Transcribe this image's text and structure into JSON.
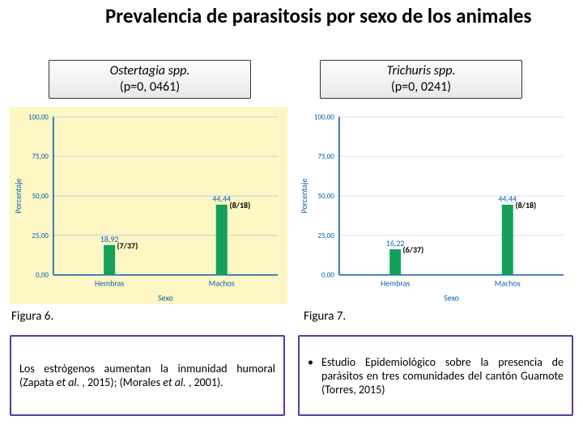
{
  "title": "Prevalencia de parasitosis por sexo de los animales",
  "labels": {
    "left": {
      "species": "Ostertagia spp.",
      "pval": "(p=0, 0461)"
    },
    "right": {
      "species": "Trichuris spp.",
      "pval": "(p=0, 0241)"
    }
  },
  "chart_left": {
    "type": "bar",
    "background": "#fcf7c4",
    "axis_color": "#0b5fb3",
    "grid_color": "#a8c6ea",
    "text_color": "#0b5fb3",
    "bar_color": "#14a05a",
    "value_font": 10,
    "y_label": "Porcentaje",
    "x_label": "Sexo",
    "ylim": [
      0,
      100
    ],
    "ytick_step": 25,
    "categories": [
      "Hembras",
      "Machos"
    ],
    "values": [
      18.92,
      44.44
    ],
    "value_labels": [
      "18,92",
      "44,44"
    ],
    "annotations": [
      "(7/37)",
      "(8/18)"
    ]
  },
  "chart_right": {
    "type": "bar",
    "background": "#ffffff",
    "axis_color": "#0b5fb3",
    "grid_color": "#c7d7ee",
    "text_color": "#0b5fb3",
    "bar_color": "#14a05a",
    "value_font": 10,
    "y_label": "Porcentaje",
    "x_label": "Sexo",
    "ylim": [
      0,
      100
    ],
    "ytick_step": 25,
    "categories": [
      "Hembras",
      "Machos"
    ],
    "values": [
      16.22,
      44.44
    ],
    "value_labels": [
      "16,22",
      "44,44"
    ],
    "annotations": [
      "(6/37)",
      "(8/18)"
    ]
  },
  "figure_labels": {
    "left": "Figura 6.",
    "right": "Figura 7."
  },
  "notes": {
    "left_html": "Los estrógenos aumentan la inmunidad humoral (Zapata <span class='ital'>et al.</span> , 2015); (Morales <span class='ital'>et al.</span> , 2001).",
    "right_html": "Estudio Epidemiológico sobre la presencia de parásitos en tres comunidades del cantón Guamote (Torres, 2015)"
  },
  "purple_border": "#5a3aa0"
}
